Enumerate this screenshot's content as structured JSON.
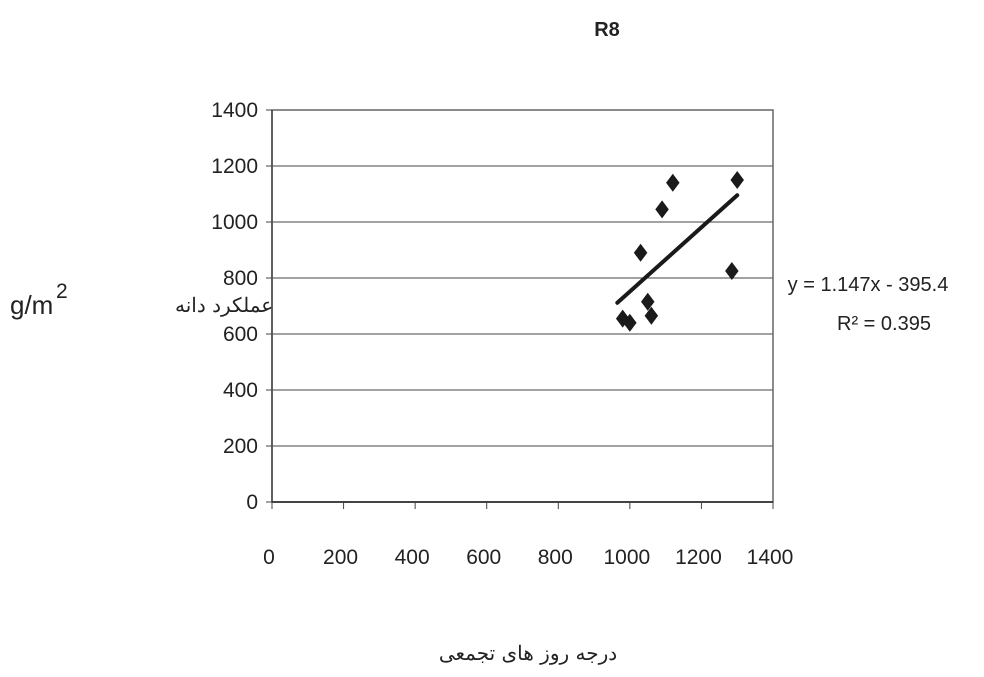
{
  "chart_data": {
    "type": "scatter",
    "title": "R8",
    "xlabel": "درجه روز های تجمعی",
    "ylabel": "عملکرد دانه",
    "ylabel_unit": "g/m",
    "ylabel_unit_exp": "2",
    "xlim": [
      0,
      1400
    ],
    "ylim": [
      0,
      1400
    ],
    "x_ticks": [
      "0",
      "200",
      "400",
      "600",
      "800",
      "1000",
      "1200",
      "1400"
    ],
    "y_ticks": [
      "0",
      "200",
      "400",
      "600",
      "800",
      "1000",
      "1200",
      "1400"
    ],
    "grid": "horizontal",
    "legend": "none",
    "points": [
      {
        "x": 980,
        "y": 655
      },
      {
        "x": 1000,
        "y": 640
      },
      {
        "x": 1030,
        "y": 890
      },
      {
        "x": 1050,
        "y": 715
      },
      {
        "x": 1060,
        "y": 665
      },
      {
        "x": 1090,
        "y": 1045
      },
      {
        "x": 1120,
        "y": 1140
      },
      {
        "x": 1285,
        "y": 825
      },
      {
        "x": 1300,
        "y": 1150
      }
    ],
    "trendline": {
      "type": "linear",
      "slope": 1.147,
      "intercept": -395.4,
      "x_range": [
        965,
        1300
      ],
      "equation": "y = 1.147x - 395.4",
      "r_squared": "R² = 0.395"
    },
    "colors": {
      "marker": "#1a1a1a",
      "line": "#1a1a1a",
      "grid": "#444444",
      "frame": "#666666"
    }
  }
}
